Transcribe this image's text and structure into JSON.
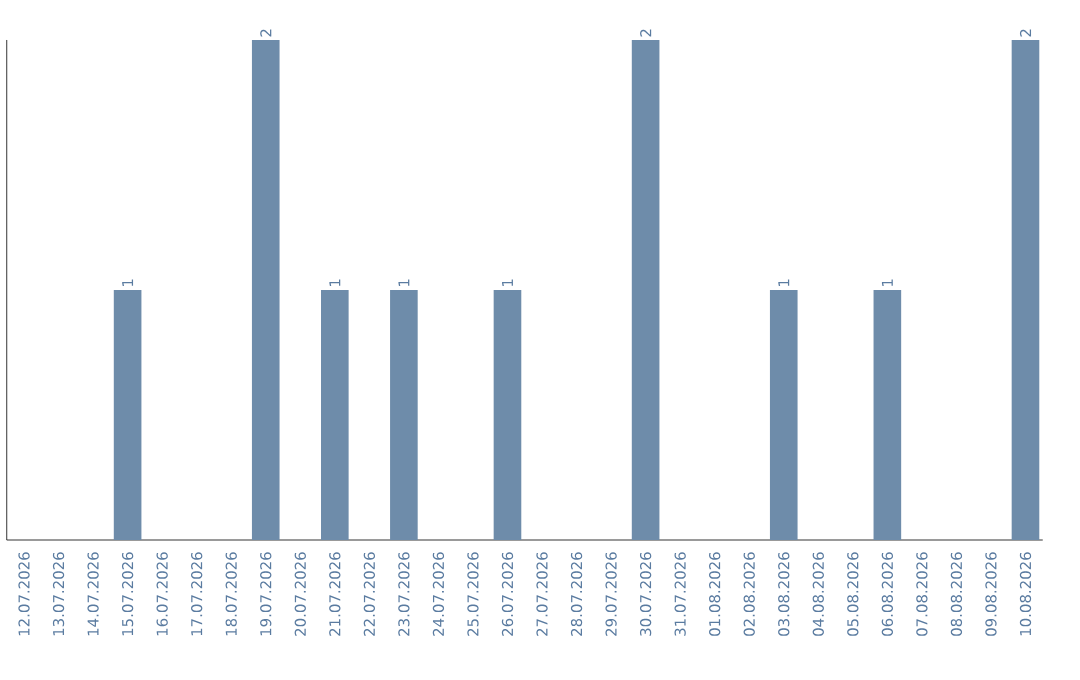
{
  "chart_data": {
    "type": "bar",
    "categories": [
      "12.07.2026",
      "13.07.2026",
      "14.07.2026",
      "15.07.2026",
      "16.07.2026",
      "17.07.2026",
      "18.07.2026",
      "19.07.2026",
      "20.07.2026",
      "21.07.2026",
      "22.07.2026",
      "23.07.2026",
      "24.07.2026",
      "25.07.2026",
      "26.07.2026",
      "27.07.2026",
      "28.07.2026",
      "29.07.2026",
      "30.07.2026",
      "31.07.2026",
      "01.08.2026",
      "02.08.2026",
      "03.08.2026",
      "04.08.2026",
      "05.08.2026",
      "06.08.2026",
      "07.08.2026",
      "08.08.2026",
      "09.08.2026",
      "10.08.2026"
    ],
    "values": [
      0,
      0,
      0,
      1,
      0,
      0,
      0,
      2,
      0,
      1,
      0,
      1,
      0,
      0,
      1,
      0,
      0,
      0,
      2,
      0,
      0,
      0,
      1,
      0,
      0,
      1,
      0,
      0,
      0,
      2
    ],
    "value_labels": [
      null,
      null,
      null,
      "1",
      null,
      null,
      null,
      "2",
      null,
      "1",
      null,
      "1",
      null,
      null,
      "1",
      null,
      null,
      null,
      "2",
      null,
      null,
      null,
      "1",
      null,
      null,
      "1",
      null,
      null,
      null,
      "2"
    ],
    "color": "#6e8caa",
    "ylim": [
      0,
      2
    ],
    "tick_labels": "x"
  }
}
